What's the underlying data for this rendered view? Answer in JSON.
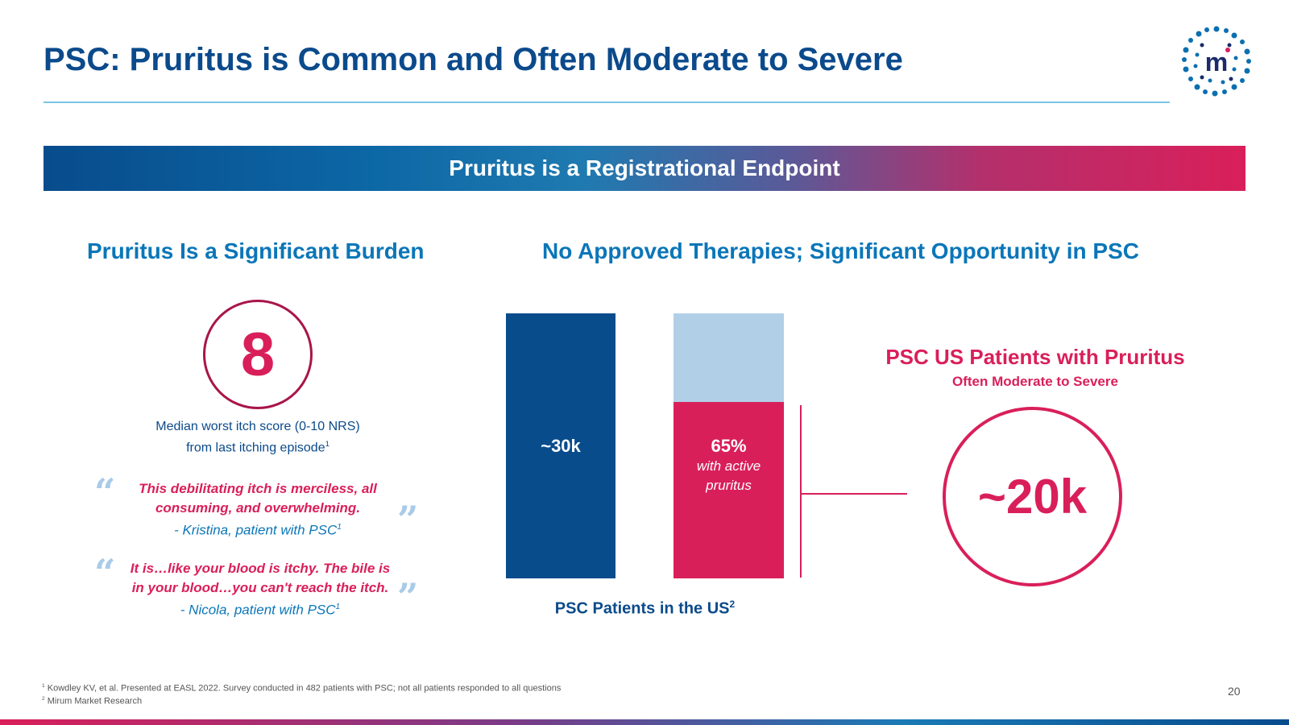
{
  "header": {
    "title": "PSC: Pruritus is Common and Often Moderate to Severe",
    "logo_letter": "m"
  },
  "banner": {
    "text": "Pruritus is a Registrational Endpoint"
  },
  "left": {
    "heading": "Pruritus Is a Significant Burden",
    "score": "8",
    "caption_line1": "Median worst itch score (0-10 NRS)",
    "caption_line2": "from last itching episode",
    "caption_sup": "1",
    "quote1": {
      "line1": "This debilitating itch is merciless, all",
      "line2": "consuming, and overwhelming.",
      "author": "- Kristina, patient with PSC",
      "sup": "1"
    },
    "quote2": {
      "line1": "It is…like your blood is itchy.  The bile is",
      "line2": "in your blood…you can't reach the itch.",
      "author": "- Nicola, patient with PSC",
      "sup": "1"
    }
  },
  "middle": {
    "heading": "No Approved Therapies; Significant Opportunity in PSC",
    "bar1_label": "~30k",
    "bar2_label": "65%",
    "bar2_sub1": "with active",
    "bar2_sub2": "pruritus",
    "axis_label": "PSC Patients in the US",
    "axis_sup": "2"
  },
  "right": {
    "title": "PSC US Patients with Pruritus",
    "subtitle": "Often Moderate to Severe",
    "value": "~20k"
  },
  "footer": {
    "note1_sup": "1",
    "note1": "Kowdley KV, et al. Presented at EASL 2022. Survey conducted in 482 patients with PSC; not all patients responded to all questions",
    "note2_sup": "2",
    "note2": "Mirum Market Research",
    "page_number": "20"
  },
  "colors": {
    "navy": "#084c8c",
    "blue": "#0b76b8",
    "pink": "#d91f5a",
    "light_blue": "#b2cfe8"
  },
  "quote_open_icon": "left-double-quote-icon",
  "quote_close_icon": "right-double-quote-icon"
}
